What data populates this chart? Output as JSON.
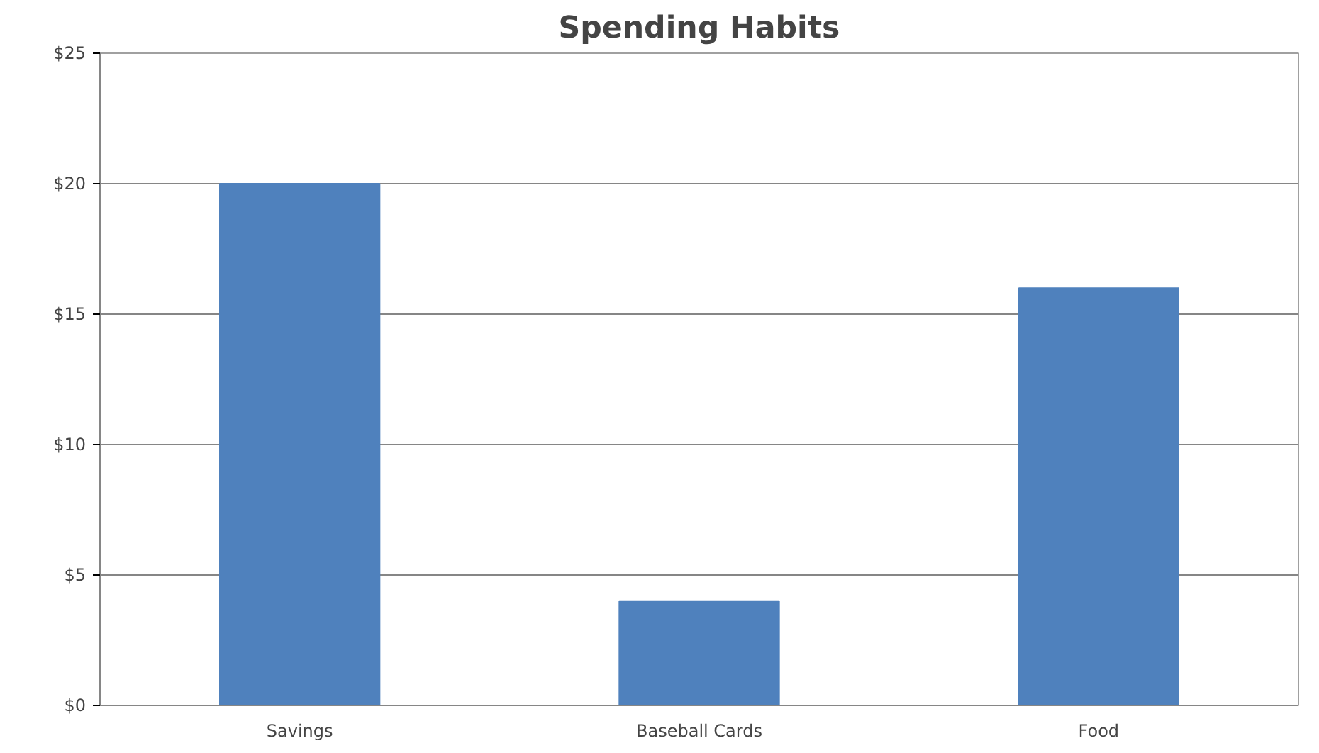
{
  "chart_data": {
    "type": "bar",
    "title": "Spending Habits",
    "categories": [
      "Savings",
      "Baseball Cards",
      "Food"
    ],
    "values": [
      20,
      4,
      16
    ],
    "color": "#4f81bd",
    "ylim": [
      0,
      25
    ],
    "yticks": [
      {
        "value": 0,
        "label": "$0"
      },
      {
        "value": 5,
        "label": "$5"
      },
      {
        "value": 10,
        "label": "$10"
      },
      {
        "value": 15,
        "label": "$15"
      },
      {
        "value": 20,
        "label": "$20"
      },
      {
        "value": 25,
        "label": "$25"
      }
    ],
    "grid": "y"
  }
}
